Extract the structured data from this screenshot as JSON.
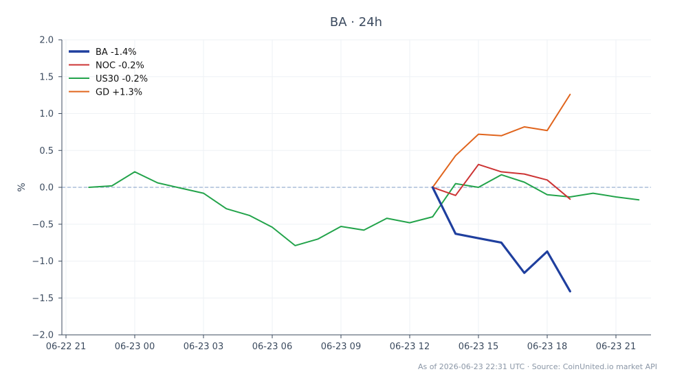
{
  "chart_data": {
    "type": "line",
    "title": "BA · 24h",
    "xlabel": "",
    "ylabel": "%",
    "x_ticks": [
      "06-22 21",
      "06-23 00",
      "06-23 03",
      "06-23 06",
      "06-23 09",
      "06-23 12",
      "06-23 15",
      "06-23 18",
      "06-23 21"
    ],
    "y_ticks": [
      "2.0",
      "1.5",
      "1.0",
      "0.5",
      "0.0",
      "−0.5",
      "−1.0",
      "−1.5",
      "−2.0"
    ],
    "y_tick_values": [
      2.0,
      1.5,
      1.0,
      0.5,
      0.0,
      -0.5,
      -1.0,
      -1.5,
      -2.0
    ],
    "xlim": [
      "06-22 21",
      "06-23 23"
    ],
    "ylim": [
      -2.0,
      2.0
    ],
    "grid": true,
    "zero_line": true,
    "legend_position": "top-left",
    "series": [
      {
        "name": "BA -1.4%",
        "color": "#1f3f9e",
        "x": [
          "06-23 13",
          "06-23 14",
          "06-23 15",
          "06-23 16",
          "06-23 17",
          "06-23 18",
          "06-23 19"
        ],
        "values": [
          0.0,
          -0.63,
          -0.69,
          -0.75,
          -1.16,
          -0.87,
          -1.41
        ]
      },
      {
        "name": "NOC -0.2%",
        "color": "#cc3333",
        "x": [
          "06-23 13",
          "06-23 14",
          "06-23 15",
          "06-23 16",
          "06-23 17",
          "06-23 18",
          "06-23 19"
        ],
        "values": [
          0.0,
          -0.11,
          0.31,
          0.21,
          0.18,
          0.1,
          -0.16
        ]
      },
      {
        "name": "US30 -0.2%",
        "color": "#22a34a",
        "x": [
          "06-22 22",
          "06-22 23",
          "06-23 00",
          "06-23 01",
          "06-23 02",
          "06-23 03",
          "06-23 04",
          "06-23 05",
          "06-23 06",
          "06-23 07",
          "06-23 08",
          "06-23 09",
          "06-23 10",
          "06-23 11",
          "06-23 12",
          "06-23 13",
          "06-23 14",
          "06-23 15",
          "06-23 16",
          "06-23 17",
          "06-23 18",
          "06-23 19",
          "06-23 20",
          "06-23 21",
          "06-23 22"
        ],
        "values": [
          0.0,
          0.02,
          0.21,
          0.06,
          -0.01,
          -0.08,
          -0.29,
          -0.38,
          -0.54,
          -0.79,
          -0.7,
          -0.53,
          -0.58,
          -0.42,
          -0.48,
          -0.4,
          0.05,
          0.0,
          0.17,
          0.07,
          -0.1,
          -0.13,
          -0.08,
          -0.13,
          -0.17
        ]
      },
      {
        "name": "GD +1.3%",
        "color": "#e0641c",
        "x": [
          "06-23 13",
          "06-23 14",
          "06-23 15",
          "06-23 16",
          "06-23 17",
          "06-23 18",
          "06-23 19"
        ],
        "values": [
          0.0,
          0.43,
          0.72,
          0.7,
          0.82,
          0.77,
          1.26
        ]
      }
    ]
  },
  "footer": "As of 2026-06-23 22:31 UTC · Source: CoinUnited.io market API"
}
